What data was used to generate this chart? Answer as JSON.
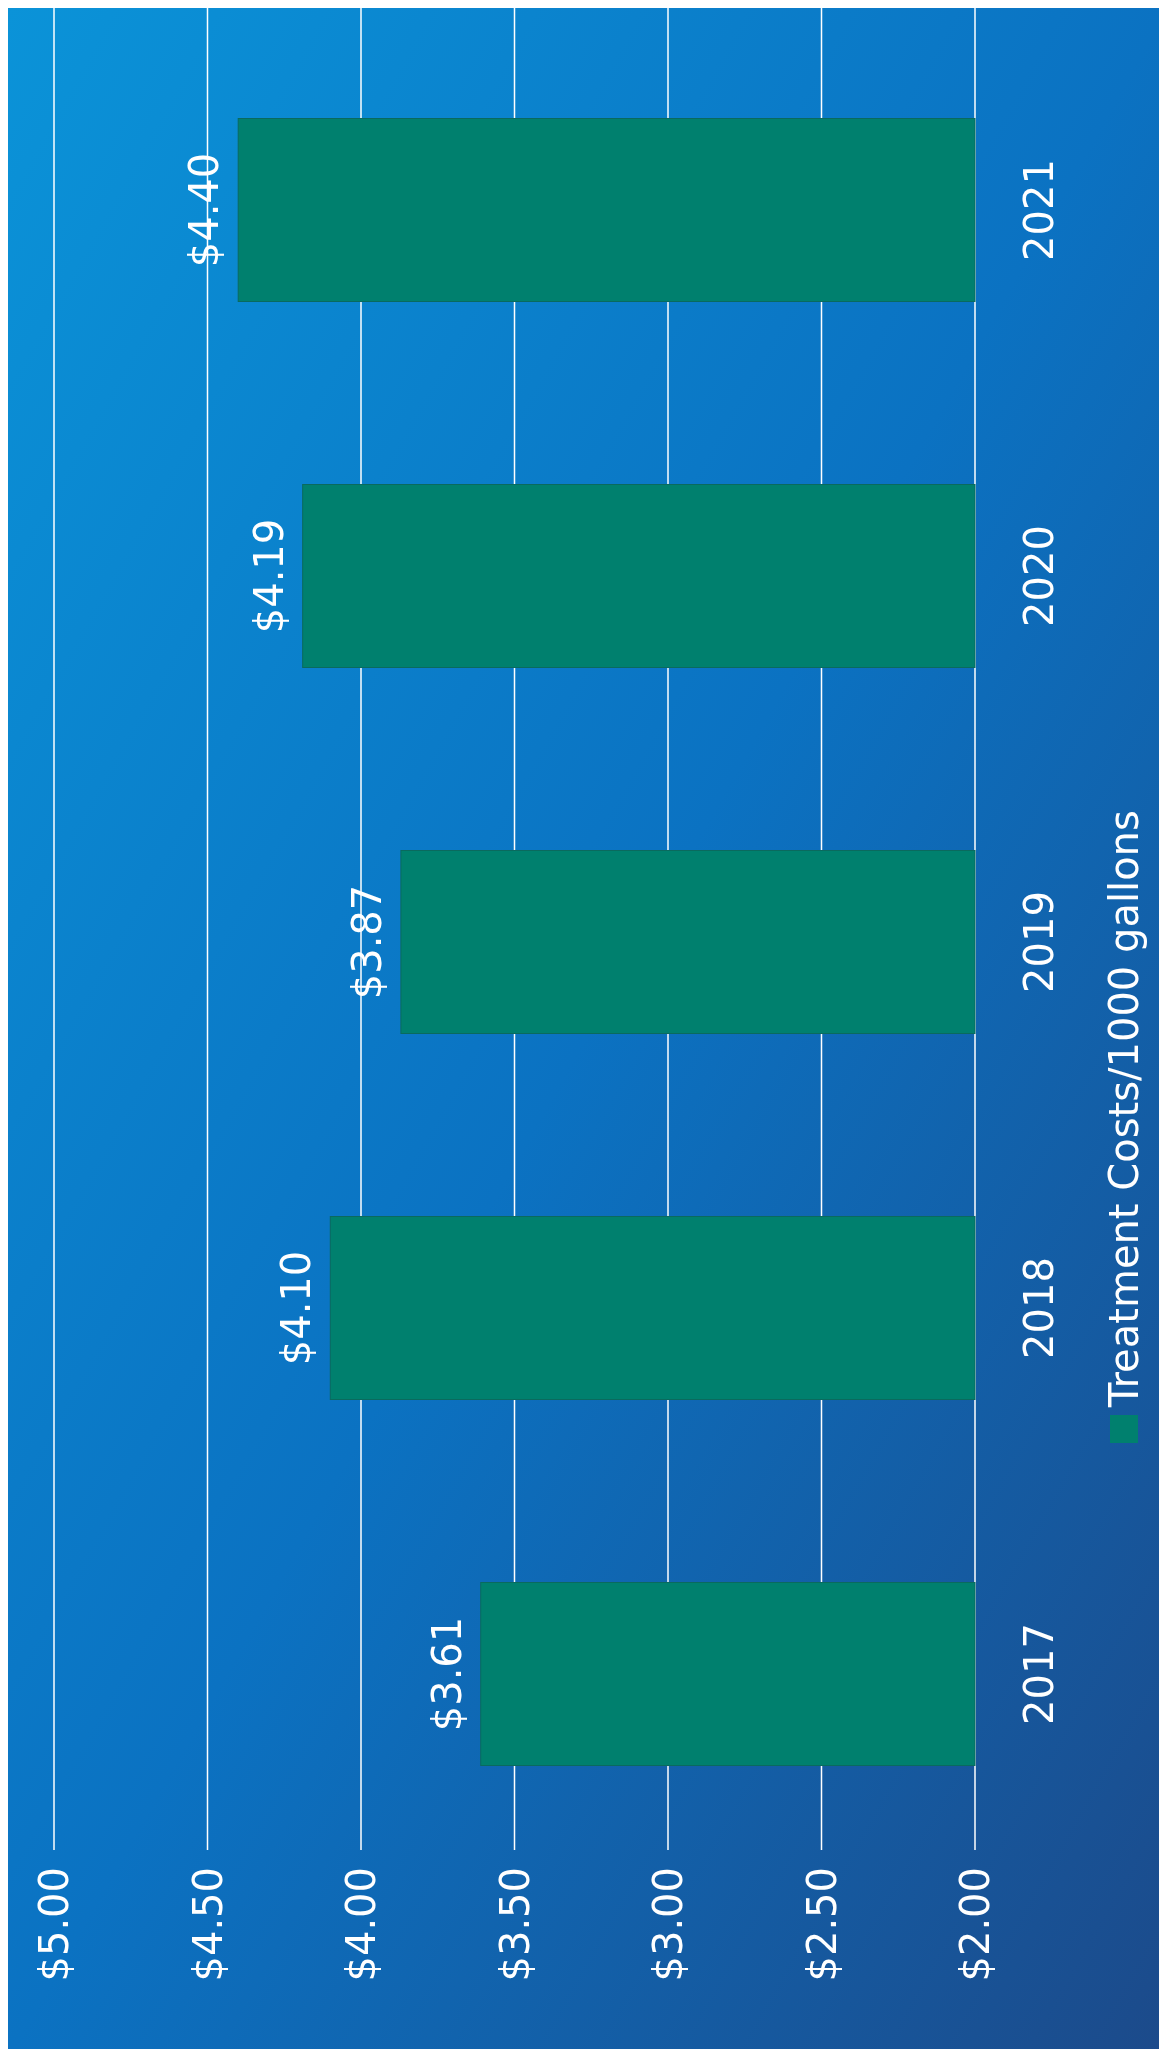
{
  "chart_data": {
    "type": "bar",
    "orientation": "horizontal",
    "categories": [
      "2021",
      "2020",
      "2019",
      "2018",
      "2017"
    ],
    "series": [
      {
        "name": "Treatment Costs/1000 gallons",
        "color": "#00806e",
        "values": [
          4.4,
          4.19,
          3.87,
          4.1,
          3.61
        ],
        "value_labels": [
          "$4.40",
          "$4.19",
          "$3.87",
          "$4.10",
          "$3.61"
        ]
      }
    ],
    "xlim": [
      5,
      2
    ],
    "xticks": [
      {
        "value": 5,
        "label": "$5.00"
      },
      {
        "value": 4.5,
        "label": "$4.50"
      },
      {
        "value": 4,
        "label": "$4.00"
      },
      {
        "value": 3.5,
        "label": "$3.50"
      },
      {
        "value": 3,
        "label": "$3.00"
      },
      {
        "value": 2.5,
        "label": "$2.50"
      },
      {
        "value": 2,
        "label": "$2.00"
      }
    ],
    "grid": "x",
    "legend": "right"
  }
}
